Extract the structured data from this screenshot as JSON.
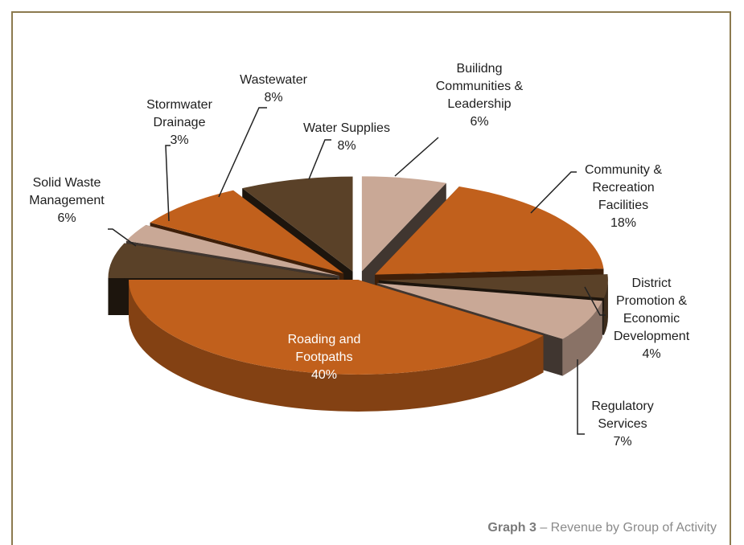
{
  "chart_data": {
    "type": "pie",
    "style": "3d-exploded",
    "title": "",
    "series": [
      {
        "label_lines": [
          "Builidng",
          "Communities &",
          "Leadership"
        ],
        "value": 6,
        "value_label": "6%",
        "color": "#c9a896"
      },
      {
        "label_lines": [
          "Community &",
          "Recreation",
          "Facilities"
        ],
        "value": 18,
        "value_label": "18%",
        "color": "#c1601c"
      },
      {
        "label_lines": [
          "District",
          "Promotion &",
          "Economic",
          "Development"
        ],
        "value": 4,
        "value_label": "4%",
        "color": "#5a4128"
      },
      {
        "label_lines": [
          "Regulatory",
          "Services"
        ],
        "value": 7,
        "value_label": "7%",
        "color": "#c9a896"
      },
      {
        "label_lines": [
          "Roading and",
          "Footpaths"
        ],
        "value": 40,
        "value_label": "40%",
        "color": "#c1601c"
      },
      {
        "label_lines": [
          "Solid Waste",
          "Management"
        ],
        "value": 6,
        "value_label": "6%",
        "color": "#5a4128"
      },
      {
        "label_lines": [
          "Stormwater",
          "Drainage"
        ],
        "value": 3,
        "value_label": "3%",
        "color": "#c9a896"
      },
      {
        "label_lines": [
          "Wastewater"
        ],
        "value": 8,
        "value_label": "8%",
        "color": "#c1601c"
      },
      {
        "label_lines": [
          "Water Supplies"
        ],
        "value": 8,
        "value_label": "8%",
        "color": "#5a4128"
      }
    ]
  },
  "caption": {
    "graph_number": "Graph 3",
    "text": " – Revenue by Group of Activity"
  }
}
